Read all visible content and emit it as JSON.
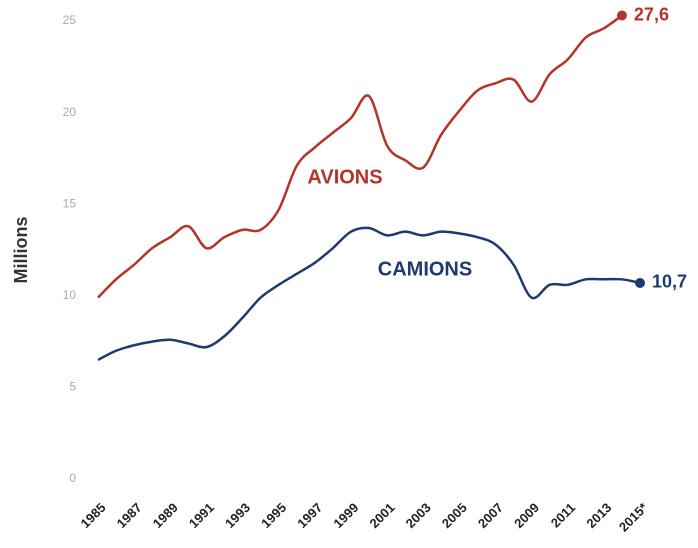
{
  "chart_data": {
    "type": "line",
    "ylabel": "Millions",
    "categories": [
      "1985",
      null,
      "1987",
      null,
      "1989",
      null,
      "1991",
      null,
      "1993",
      null,
      "1995",
      null,
      "1997",
      null,
      "1999",
      null,
      "2001",
      null,
      "2003",
      null,
      "2005",
      null,
      "2007",
      null,
      "2009",
      null,
      "2011",
      null,
      "2013",
      null,
      "2015*"
    ],
    "series": [
      {
        "name": "AVIONS",
        "color": "#b3342a",
        "values": [
          9.9,
          10.9,
          11.7,
          12.6,
          13.2,
          13.8,
          12.6,
          13.2,
          13.6,
          13.6,
          14.7,
          17.1,
          18.1,
          18.9,
          19.7,
          20.9,
          18.2,
          17.4,
          17.0,
          18.8,
          20.1,
          21.2,
          21.6,
          21.8,
          20.6,
          22.1,
          22.9,
          24.1,
          24.6,
          25.3,
          null
        ]
      },
      {
        "name": "CAMIONS",
        "color": "#1e3a70",
        "values": [
          6.5,
          7.0,
          7.3,
          7.5,
          7.6,
          7.4,
          7.2,
          7.8,
          8.8,
          9.9,
          10.6,
          11.2,
          11.8,
          12.6,
          13.5,
          13.7,
          13.3,
          13.5,
          13.3,
          13.5,
          13.4,
          13.2,
          12.8,
          11.7,
          9.9,
          10.6,
          10.6,
          10.9,
          10.9,
          10.9,
          10.7
        ]
      }
    ],
    "annotations": [
      "27,6",
      "10,7"
    ],
    "ylim": [
      0,
      25
    ],
    "yticks": [
      0,
      5,
      10,
      15,
      20,
      25
    ],
    "grid": false
  }
}
